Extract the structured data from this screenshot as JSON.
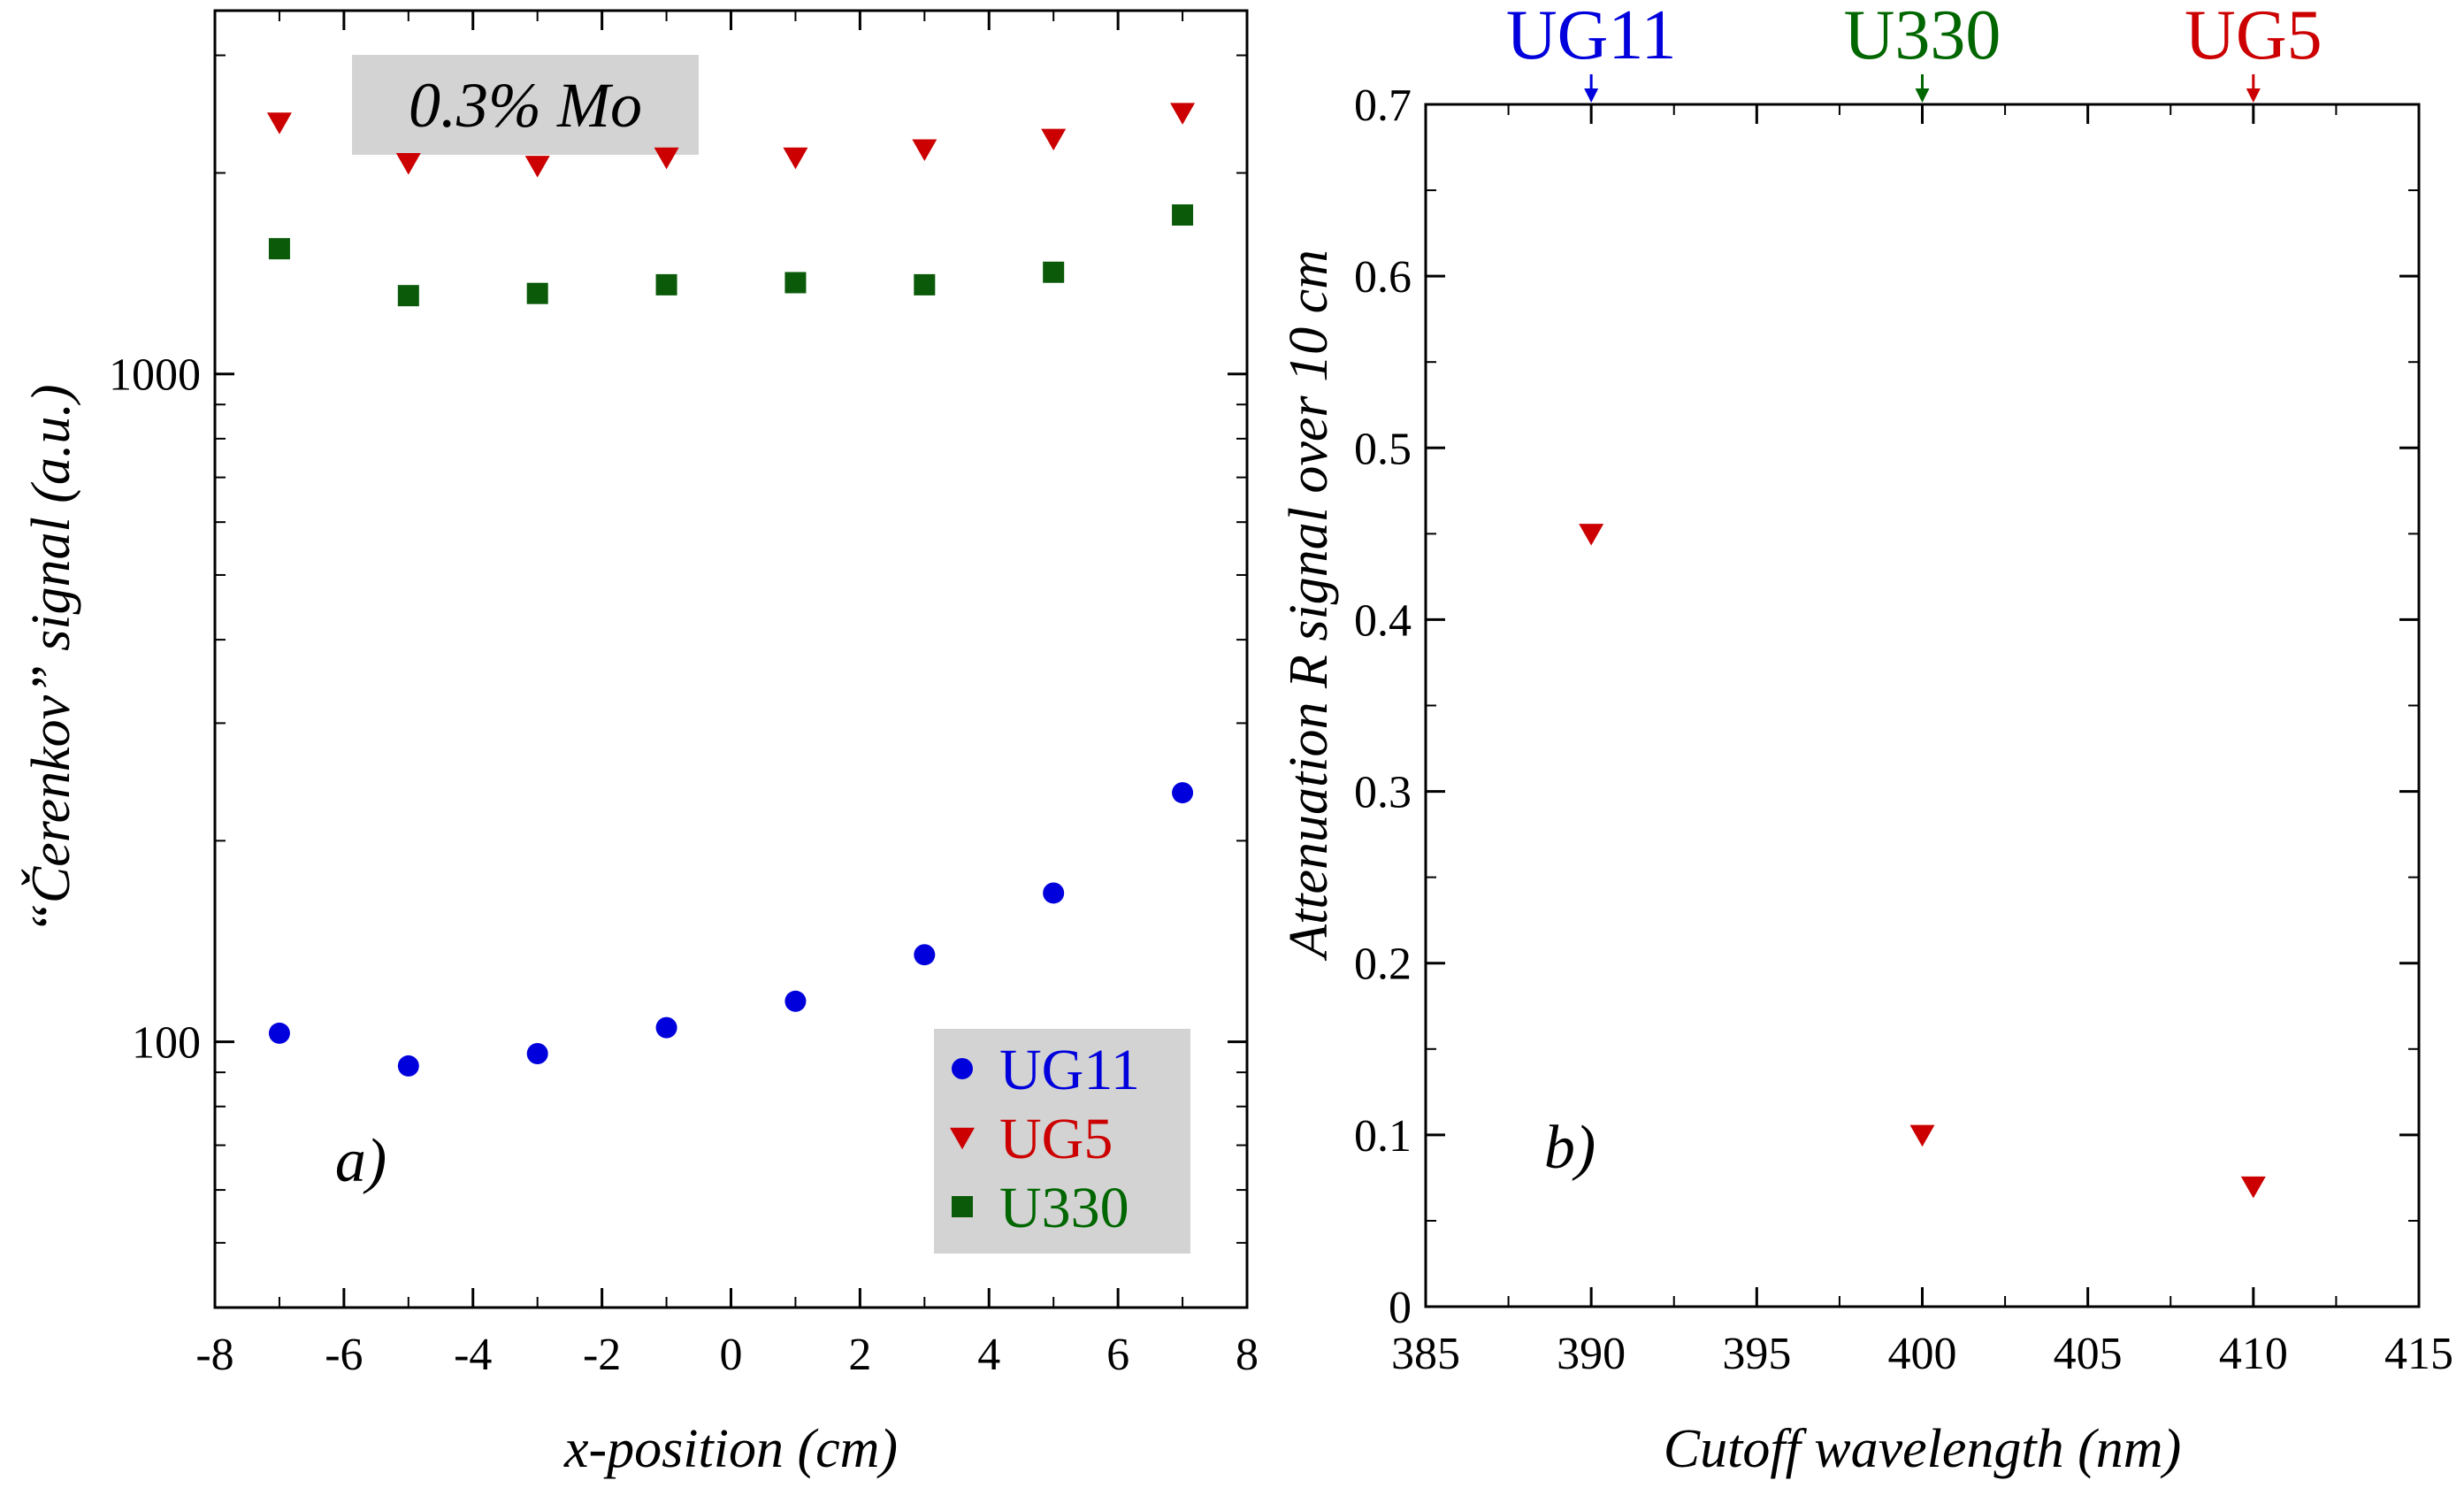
{
  "colors": {
    "UG11": "#0000dd",
    "UG5": "#cc0000",
    "U330": "#006600",
    "UG5_marker": "#cc0000",
    "UG11_marker": "#0000dd",
    "U330_marker": "#0a5a0a",
    "box_fill": "#d3d3d3"
  },
  "chart_data": [
    {
      "type": "scatter",
      "panel_tag": "a)",
      "annotation": "0.3% Mo",
      "xlabel": "x-position (cm)",
      "ylabel": "“Čerenkov” signal (a.u.)",
      "xlim": [
        -8,
        8
      ],
      "ylim": [
        40,
        3500
      ],
      "yscale": "log",
      "xticks": [
        -8,
        -6,
        -4,
        -2,
        0,
        2,
        4,
        6,
        8
      ],
      "xtick_labels": [
        "-8",
        "-6",
        "-4",
        "-2",
        "0",
        "2",
        "4",
        "6",
        "8"
      ],
      "yticks": [
        100,
        1000
      ],
      "ytick_labels": [
        "100",
        "1000"
      ],
      "legend_position": "bottom-right",
      "series": [
        {
          "name": "UG11",
          "marker": "circle",
          "x": [
            -7,
            -5,
            -3,
            -1,
            1,
            3,
            5,
            7
          ],
          "y": [
            103,
            92,
            96,
            105,
            115,
            135,
            167,
            236
          ]
        },
        {
          "name": "UG5",
          "marker": "triangle-down",
          "x": [
            -7,
            -5,
            -3,
            -1,
            1,
            3,
            5,
            7
          ],
          "y": [
            2380,
            2070,
            2050,
            2110,
            2110,
            2170,
            2250,
            2460
          ]
        },
        {
          "name": "U330",
          "marker": "square",
          "x": [
            -7,
            -5,
            -3,
            -1,
            1,
            3,
            5,
            7
          ],
          "y": [
            1540,
            1310,
            1320,
            1360,
            1370,
            1360,
            1420,
            1730
          ]
        }
      ]
    },
    {
      "type": "scatter",
      "panel_tag": "b)",
      "xlabel": "Cutoff wavelength (nm)",
      "ylabel": "Attenuation R signal over 10 cm",
      "xlim": [
        385,
        415
      ],
      "ylim": [
        0,
        0.7
      ],
      "xticks": [
        385,
        390,
        395,
        400,
        405,
        410,
        415
      ],
      "xtick_labels": [
        "385",
        "390",
        "395",
        "400",
        "405",
        "410",
        "415"
      ],
      "yticks": [
        0,
        0.1,
        0.2,
        0.3,
        0.4,
        0.5,
        0.6,
        0.7
      ],
      "ytick_labels": [
        "0",
        "0.1",
        "0.2",
        "0.3",
        "0.4",
        "0.5",
        "0.6",
        "0.7"
      ],
      "top_labels": [
        {
          "text": "UG11",
          "x": 390,
          "color_key": "UG11"
        },
        {
          "text": "U330",
          "x": 400,
          "color_key": "U330"
        },
        {
          "text": "UG5",
          "x": 410,
          "color_key": "UG5"
        }
      ],
      "series": [
        {
          "marker": "triangle-down",
          "x": [
            390,
            400,
            410
          ],
          "y": [
            0.45,
            0.1,
            0.07
          ]
        }
      ]
    }
  ]
}
